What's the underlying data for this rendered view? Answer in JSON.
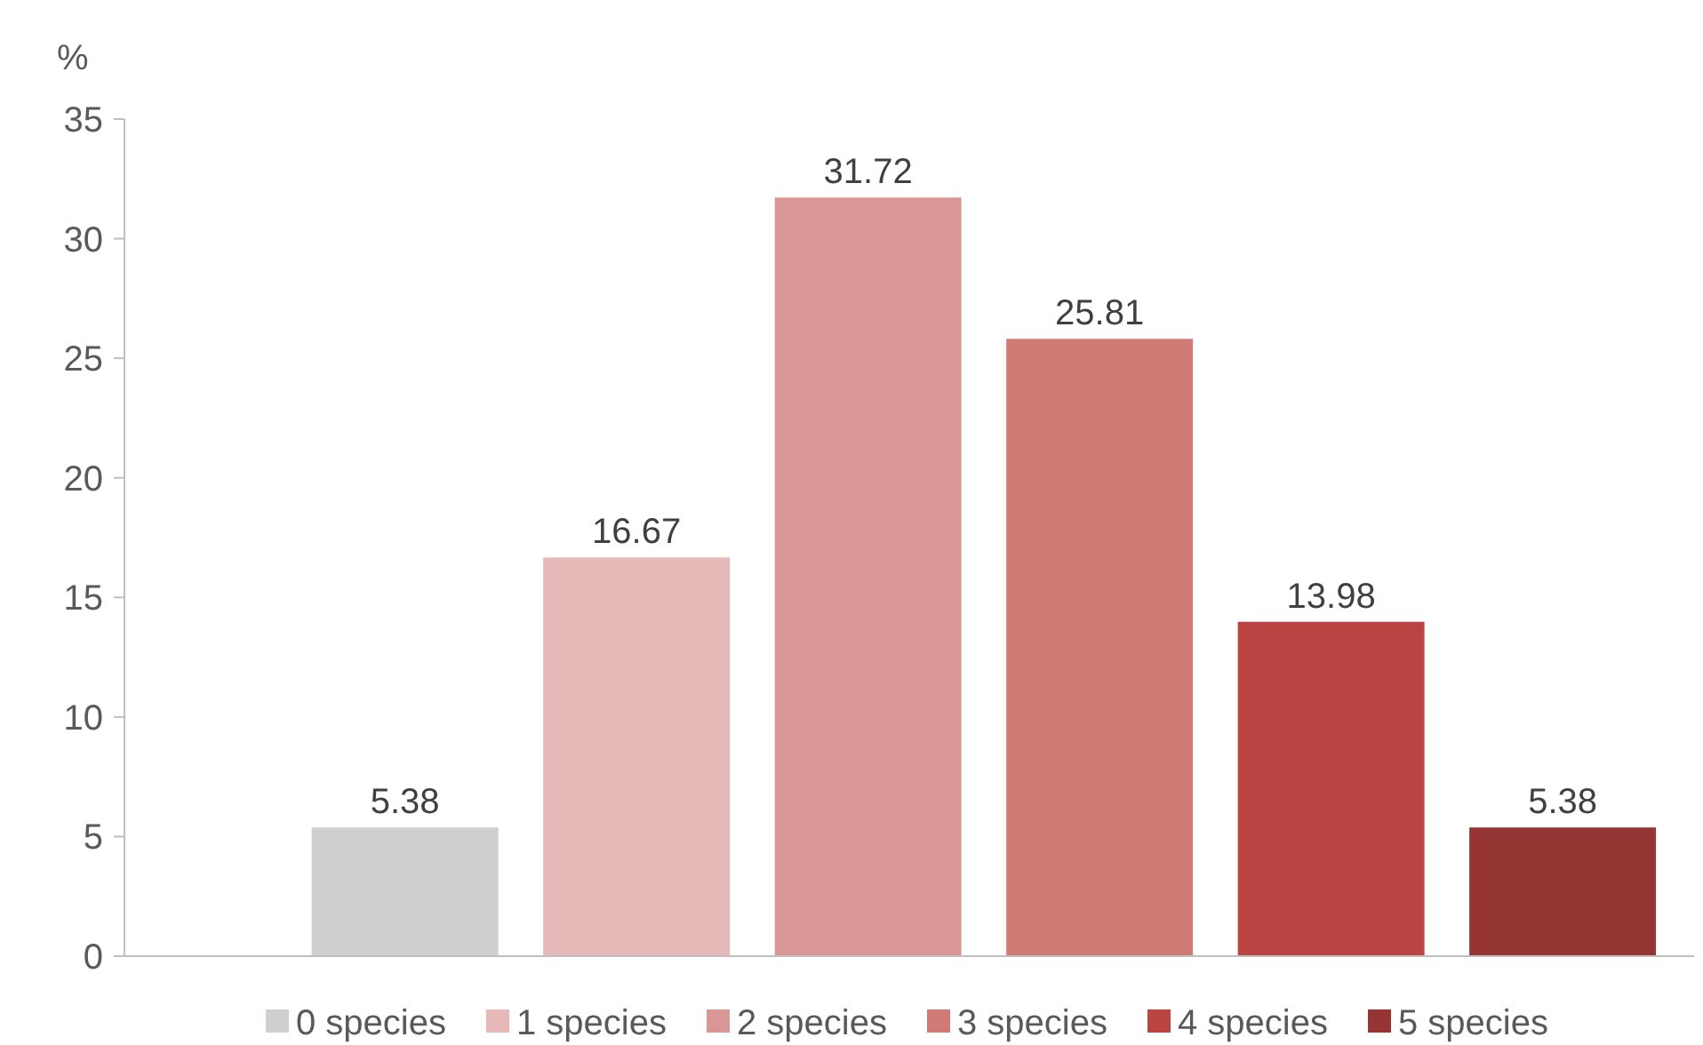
{
  "chart_data": {
    "type": "bar",
    "ylabel": "%",
    "categories": [
      null
    ],
    "series": [
      {
        "name": "0 species",
        "color": "#d0cece",
        "values": [
          5.38
        ]
      },
      {
        "name": "1 species",
        "color": "#e6b8b7",
        "values": [
          16.67
        ]
      },
      {
        "name": "2 species",
        "color": "#da9694",
        "values": [
          31.72
        ]
      },
      {
        "name": "3 species",
        "color": "#d07a76",
        "values": [
          25.81
        ]
      },
      {
        "name": "4 species",
        "color": "#b94441",
        "values": [
          13.98
        ]
      },
      {
        "name": "5 species",
        "color": "#963634",
        "values": [
          5.38
        ]
      }
    ],
    "ylim": [
      0,
      35
    ],
    "yticks": [
      0,
      5,
      10,
      15,
      20,
      25,
      30,
      35
    ],
    "grid": false,
    "legend": "bottom",
    "data_labels": true
  }
}
